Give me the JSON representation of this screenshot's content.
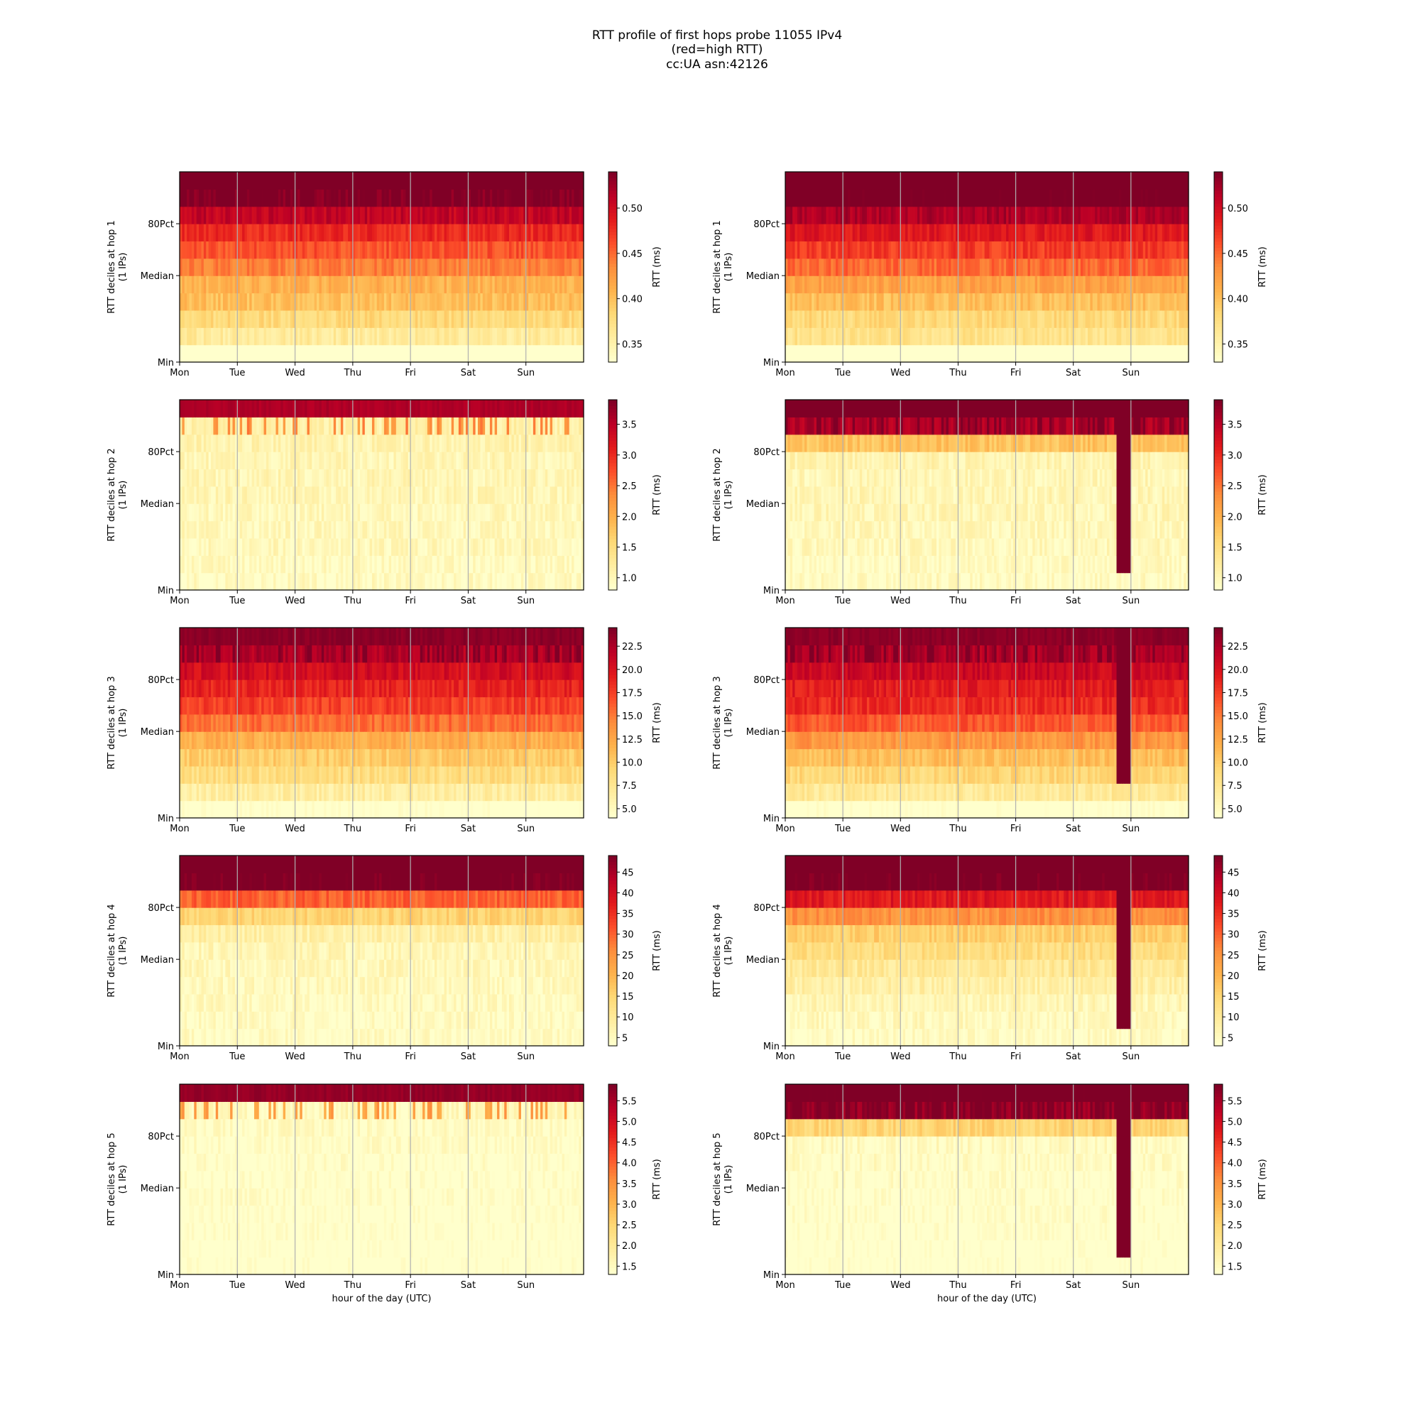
{
  "figure": {
    "title_lines": [
      "RTT profile of first hops probe 11055 IPv4",
      "(red=high RTT)",
      "cc:UA asn:42126"
    ]
  },
  "chart_data": {
    "type": "heatmap",
    "x_ticks": [
      "Mon",
      "Tue",
      "Wed",
      "Thu",
      "Fri",
      "Sat",
      "Sun"
    ],
    "y_ticks": [
      "80Pct",
      "Median",
      "Min"
    ],
    "xlabel": "hour of the day (UTC)",
    "colorbar_label": "RTT (ms)",
    "colormap": [
      "#ffffcc",
      "#ffeda0",
      "#fed976",
      "#feb24c",
      "#fd8d3c",
      "#fc4e2a",
      "#e31a1c",
      "#bd0026",
      "#800026"
    ],
    "grid": "vertical gridlines at day boundaries",
    "rows": [
      {
        "hop": 1,
        "ylabel": "RTT deciles at hop 1",
        "ylabel2": "(1 IPs)",
        "colorbar_ticks": [
          "0.50",
          "0.45",
          "0.40",
          "0.35"
        ],
        "panels": [
          {
            "deciles_ms": [
              0.3,
              0.36,
              0.38,
              0.4,
              0.41,
              0.44,
              0.46,
              0.48,
              0.51,
              0.54,
              0.62
            ],
            "event": null
          },
          {
            "deciles_ms": [
              0.31,
              0.37,
              0.38,
              0.4,
              0.42,
              0.45,
              0.47,
              0.49,
              0.52,
              0.55,
              0.62
            ],
            "event": null
          }
        ]
      },
      {
        "hop": 2,
        "ylabel": "RTT deciles at hop 2",
        "ylabel2": "(1 IPs)",
        "colorbar_ticks": [
          "3.5",
          "3.0",
          "2.5",
          "2.0",
          "1.5",
          "1.0"
        ],
        "panels": [
          {
            "deciles_ms": [
              0.9,
              0.9,
              0.95,
              0.95,
              0.95,
              1.0,
              1.0,
              1.0,
              1.05,
              1.1,
              3.6
            ],
            "event": null
          },
          {
            "deciles_ms": [
              0.9,
              0.9,
              0.95,
              0.95,
              1.0,
              1.0,
              1.0,
              1.05,
              1.8,
              3.6,
              4.0
            ],
            "event": {
              "day": 5.75,
              "from_decile": 1
            }
          }
        ]
      },
      {
        "hop": 3,
        "ylabel": "RTT deciles at hop 3",
        "ylabel2": "(1 IPs)",
        "colorbar_ticks": [
          "22.5",
          "20.0",
          "17.5",
          "15.0",
          "12.5",
          "10.0",
          "7.5",
          "5.0"
        ],
        "panels": [
          {
            "deciles_ms": [
              3.5,
              6.5,
              8.5,
              10.0,
              12.0,
              15.5,
              17.5,
              19.0,
              20.5,
              22.5,
              24.0
            ],
            "event": null
          },
          {
            "deciles_ms": [
              3.5,
              7.0,
              9.0,
              11.0,
              13.5,
              16.5,
              18.5,
              19.5,
              21.0,
              22.5,
              24.0
            ],
            "event": {
              "day": 5.75,
              "from_decile": 2
            }
          }
        ]
      },
      {
        "hop": 4,
        "ylabel": "RTT deciles at hop 4",
        "ylabel2": "(1 IPs)",
        "colorbar_ticks": [
          "45",
          "40",
          "35",
          "30",
          "25",
          "20",
          "15",
          "10",
          "5"
        ],
        "panels": [
          {
            "deciles_ms": [
              4,
              4,
              4.5,
              5,
              5.5,
              6,
              8,
              15,
              30,
              50,
              55
            ],
            "event": null
          },
          {
            "deciles_ms": [
              4,
              5,
              6,
              8,
              10,
              13,
              16,
              25,
              38,
              50,
              55
            ],
            "event": {
              "day": 5.75,
              "from_decile": 1
            }
          }
        ]
      },
      {
        "hop": 5,
        "ylabel": "RTT deciles at hop 5",
        "ylabel2": "(1 IPs)",
        "colorbar_ticks": [
          "5.5",
          "5.0",
          "4.5",
          "4.0",
          "3.5",
          "3.0",
          "2.5",
          "2.0",
          "1.5"
        ],
        "panels": [
          {
            "deciles_ms": [
              1.2,
              1.2,
              1.25,
              1.25,
              1.3,
              1.3,
              1.3,
              1.35,
              1.4,
              1.5,
              5.7
            ],
            "event": null
          },
          {
            "deciles_ms": [
              1.2,
              1.2,
              1.25,
              1.3,
              1.3,
              1.35,
              1.4,
              1.45,
              2.5,
              5.7,
              6.0
            ],
            "event": {
              "day": 5.75,
              "from_decile": 1
            }
          }
        ]
      }
    ]
  }
}
